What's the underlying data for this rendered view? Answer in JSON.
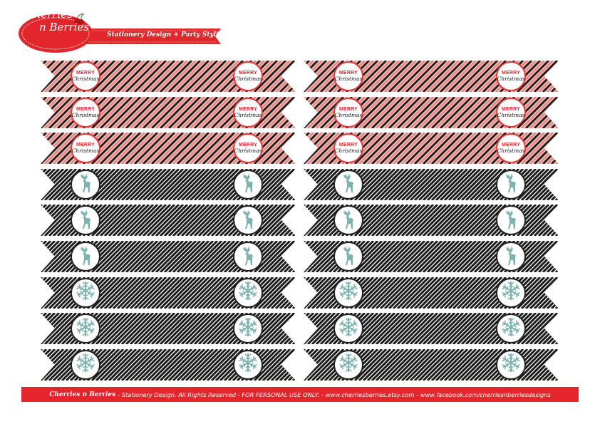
{
  "header": {
    "logo_line1": "Cherries",
    "logo_line2": "n Berries",
    "tagline": "Stationery Design + Party Styling"
  },
  "flag_text": {
    "merry": "MERRY",
    "christmas": "Christmas"
  },
  "flag_rows": [
    {
      "theme": "red",
      "motif": "merry-christmas-badge"
    },
    {
      "theme": "red",
      "motif": "merry-christmas-badge"
    },
    {
      "theme": "red",
      "motif": "merry-christmas-badge"
    },
    {
      "theme": "black",
      "motif": "reindeer-icon"
    },
    {
      "theme": "black",
      "motif": "reindeer-icon"
    },
    {
      "theme": "black",
      "motif": "reindeer-icon"
    },
    {
      "theme": "black",
      "motif": "snowflake-icon"
    },
    {
      "theme": "black",
      "motif": "snowflake-icon"
    },
    {
      "theme": "black",
      "motif": "snowflake-icon"
    }
  ],
  "colors": {
    "brand_red": "#e2262b",
    "stripe_red": "#e88a84",
    "stripe_black": "#1a1a1a",
    "motif_teal": "#7fb3b0"
  },
  "footer": {
    "brand": "Cherries n Berries",
    "text": "- Stationery Design. All Rights Reserved - FOR PERSONAL USE ONLY. - www.cherriesberries.etsy.com - www.facebook.com/cherriesnberriesdesigns"
  }
}
